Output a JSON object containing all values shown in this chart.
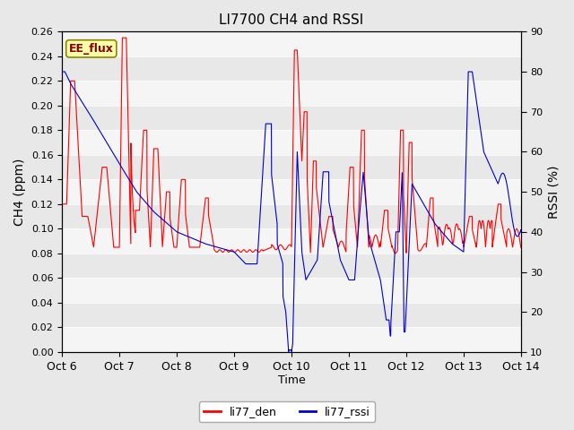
{
  "title": "LI7700 CH4 and RSSI",
  "xlabel": "Time",
  "ylabel_left": "CH4 (ppm)",
  "ylabel_right": "RSSI (%)",
  "ylim_left": [
    0.0,
    0.26
  ],
  "ylim_right": [
    10,
    90
  ],
  "yticks_left": [
    0.0,
    0.02,
    0.04,
    0.06,
    0.08,
    0.1,
    0.12,
    0.14,
    0.16,
    0.18,
    0.2,
    0.22,
    0.24,
    0.26
  ],
  "yticks_right": [
    10,
    20,
    30,
    40,
    50,
    60,
    70,
    80,
    90
  ],
  "xtick_labels": [
    "Oct 6",
    "Oct 7",
    "Oct 8",
    "Oct 9",
    "Oct 10",
    "Oct 11",
    "Oct 12",
    "Oct 13",
    "Oct 14"
  ],
  "legend_labels": [
    "li77_den",
    "li77_rssi"
  ],
  "legend_colors": [
    "#ff0000",
    "#0000cc"
  ],
  "annotation_text": "EE_flux",
  "annotation_bg": "#ffffaa",
  "annotation_border": "#aaaa00",
  "bg_color": "#e8e8e8",
  "line_color_red": "#ff0000",
  "line_color_blue": "#0000cc"
}
